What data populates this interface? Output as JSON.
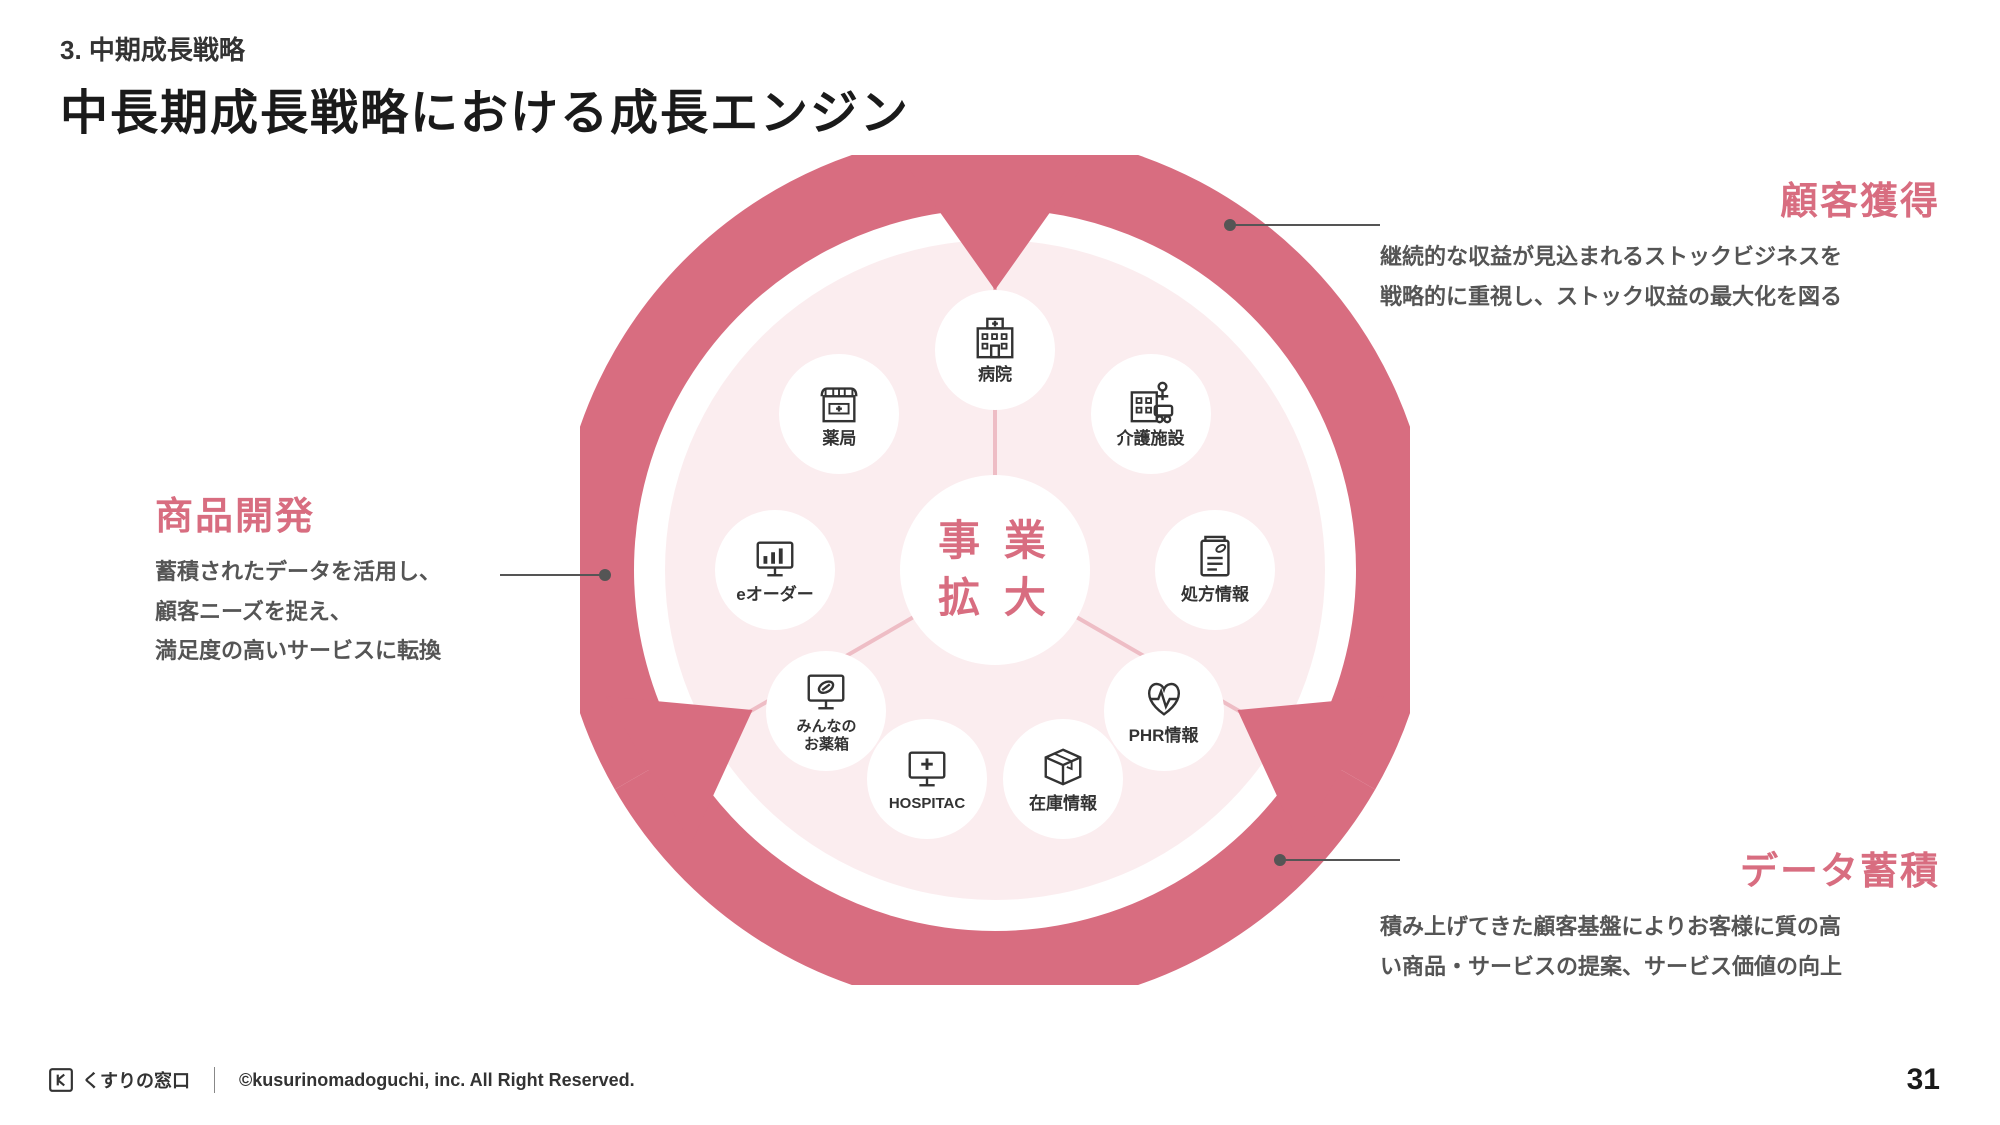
{
  "header": {
    "kicker": "3. 中期成長戦略",
    "title": "中長期成長戦略における成長エンジン"
  },
  "diagram": {
    "center_label": "事 業\n拡 大",
    "ring_color": "#d86d80",
    "ring_light": "#fbedef",
    "divider_color": "#eebdc5",
    "icon_color": "#333333",
    "bubbles": [
      {
        "id": "hospital",
        "label": "病院",
        "angle": -90,
        "size": ""
      },
      {
        "id": "pharmacy",
        "label": "薬局",
        "angle": -135,
        "size": ""
      },
      {
        "id": "care",
        "label": "介護施設",
        "angle": -45,
        "size": ""
      },
      {
        "id": "eorder",
        "label": "eオーダー",
        "angle": 180,
        "size": ""
      },
      {
        "id": "rx",
        "label": "処方情報",
        "angle": 0,
        "size": ""
      },
      {
        "id": "medbox",
        "label": "みんなの\nお薬箱",
        "angle": 140,
        "size": "small"
      },
      {
        "id": "phr",
        "label": "PHR情報",
        "angle": 40,
        "size": ""
      },
      {
        "id": "hospitac",
        "label": "HOSPITAC",
        "angle": 108,
        "size": "small"
      },
      {
        "id": "stock",
        "label": "在庫情報",
        "angle": 72,
        "size": ""
      }
    ]
  },
  "callouts": {
    "top_right": {
      "title": "顧客獲得",
      "desc": "継続的な収益が見込まれるストックビジネスを\n戦略的に重視し、ストック収益の最大化を図る",
      "title_color": "#d86d80",
      "title_size": 38
    },
    "left": {
      "title": "商品開発",
      "desc": "蓄積されたデータを活用し、\n顧客ニーズを捉え、\n満足度の高いサービスに転換",
      "title_color": "#d86d80",
      "title_size": 38
    },
    "bottom_right": {
      "title": "データ蓄積",
      "desc": "積み上げてきた顧客基盤によりお客様に質の高\nい商品・サービスの提案、サービス価値の向上",
      "title_color": "#d86d80",
      "title_size": 38
    }
  },
  "footer": {
    "brand": "くすりの窓口",
    "copyright": "©kusurinomadoguchi, inc. All Right Reserved.",
    "page": "31"
  }
}
